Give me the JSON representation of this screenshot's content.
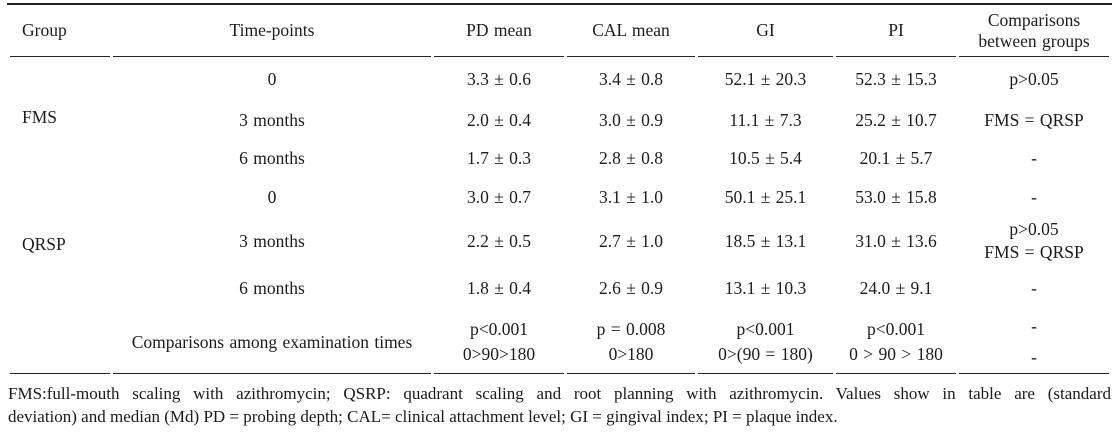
{
  "colors": {
    "background": "#ffffff",
    "text": "#1c1c1c",
    "rule": "#262626"
  },
  "table": {
    "columns": [
      "Group",
      "Time-points",
      "PD mean",
      "CAL mean",
      "GI",
      "PI",
      "Comparisons between groups"
    ],
    "groups": [
      {
        "name": "FMS",
        "rows": [
          {
            "time": "0",
            "pd": "3.3 ± 0.6",
            "cal": "3.4 ± 0.8",
            "gi": "52.1 ± 20.3",
            "pi": "52.3 ± 15.3",
            "comparison": "p>0.05"
          },
          {
            "time": "3 months",
            "pd": "2.0 ± 0.4",
            "cal": "3.0 ± 0.9",
            "gi": "11.1 ± 7.3",
            "pi": "25.2 ± 10.7",
            "comparison": "FMS = QRSP"
          },
          {
            "time": "6 months",
            "pd": "1.7 ± 0.3",
            "cal": "2.8 ± 0.8",
            "gi": "10.5 ± 5.4",
            "pi": "20.1 ± 5.7",
            "comparison": "-"
          }
        ]
      },
      {
        "name": "QRSP",
        "rows": [
          {
            "time": "0",
            "pd": "3.0 ± 0.7",
            "cal": "3.1 ± 1.0",
            "gi": "50.1 ± 25.1",
            "pi": "53.0 ± 15.8",
            "comparison": "-"
          },
          {
            "time": "3 months",
            "pd": "2.2 ± 0.5",
            "cal": "2.7 ± 1.0",
            "gi": "18.5 ± 13.1",
            "pi": "31.0 ± 13.6",
            "comparison": "p>0.05\nFMS = QRSP"
          },
          {
            "time": "6 months",
            "pd": "1.8 ± 0.4",
            "cal": "2.6 ± 0.9",
            "gi": "13.1 ± 10.3",
            "pi": "24.0 ± 9.1",
            "comparison": "-"
          }
        ]
      }
    ],
    "summary": {
      "label": "Comparisons among examination times",
      "pd": "p<0.001\n0>90>180",
      "cal": "p = 0.008\n0>180",
      "gi": "p<0.001\n0>(90 = 180)",
      "pi": "p<0.001\n0 > 90 > 180",
      "comparison": "-\n-"
    }
  },
  "footnote": {
    "line1": "FMS:full-mouth scaling with azithromycin; QSRP: quadrant scaling and root planning with azithromycin. Values show in table are  (standard",
    "line2": "deviation) and median (Md) PD = probing depth; CAL= clinical attachment level; GI = gingival index; PI = plaque index."
  }
}
